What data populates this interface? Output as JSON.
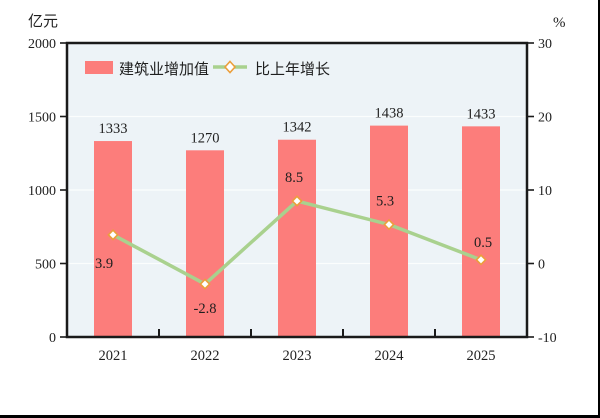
{
  "figure": {
    "type": "combo-chart",
    "background": "#ffffff",
    "frame_color": "#1a1a1a",
    "text_color": "#1f1f1f"
  },
  "legend": {
    "bar_label": "建筑业增加值",
    "line_label": "比上年增长"
  },
  "chart_data": {
    "type": "bar+line",
    "categories": [
      "2021",
      "2022",
      "2023",
      "2024",
      "2025"
    ],
    "series": [
      {
        "name": "建筑业增加值",
        "type": "bar",
        "axis": "left",
        "values": [
          1333,
          1270,
          1342,
          1438,
          1433
        ],
        "color": "#FC7D7B"
      },
      {
        "name": "比上年增长",
        "type": "line",
        "axis": "right",
        "values": [
          3.9,
          -2.8,
          8.5,
          5.3,
          0.5
        ],
        "color": "#A9D18E",
        "marker": "diamond",
        "marker_fill": "#FFFFFF",
        "marker_stroke": "#EB9F3C"
      }
    ],
    "left_axis": {
      "unit": "亿元",
      "min": 0,
      "max": 2000,
      "ticks": [
        0,
        500,
        1000,
        1500,
        2000
      ]
    },
    "right_axis": {
      "unit": "%",
      "min": -10,
      "max": 30,
      "ticks": [
        -10,
        0,
        10,
        20,
        30
      ]
    },
    "grid": true,
    "grid_color": "#FBFDFD",
    "plot_bg": "#EDF3F7",
    "legend_position": "top-left-inside"
  }
}
